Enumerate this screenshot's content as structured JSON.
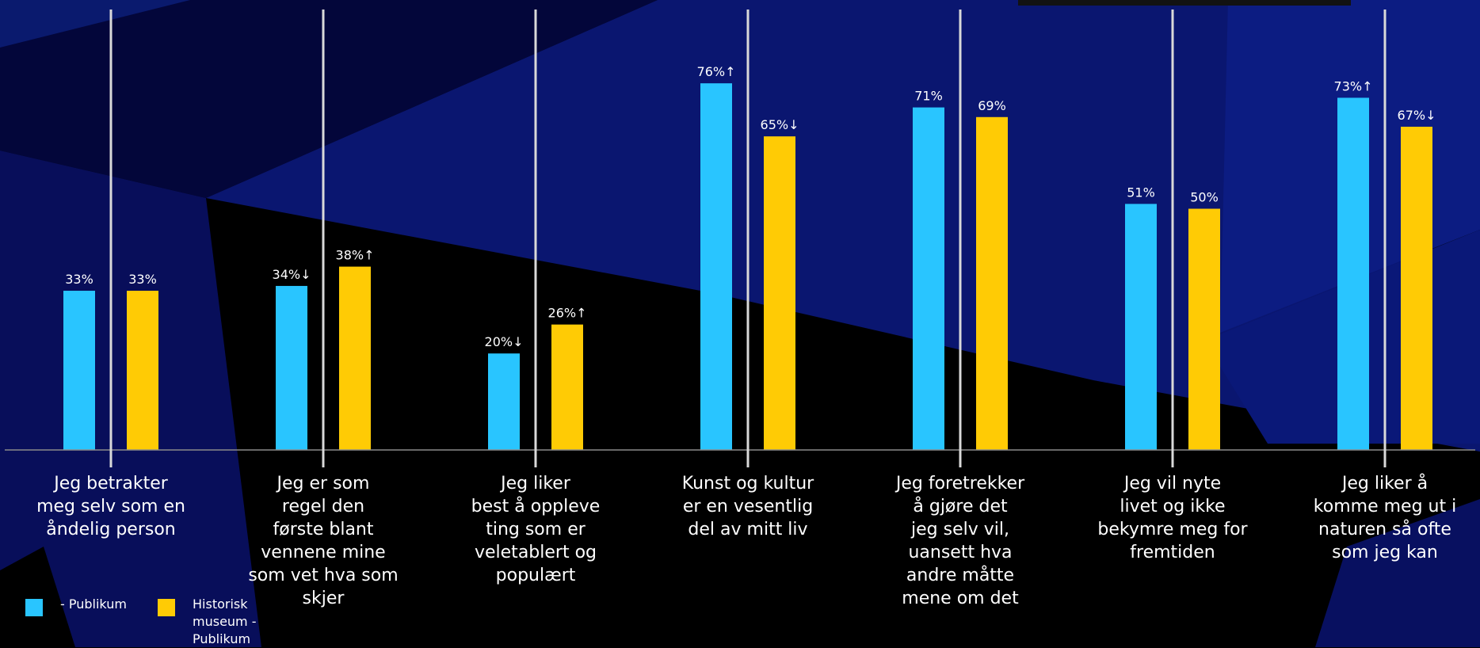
{
  "chart_data": {
    "type": "bar",
    "categories": [
      "Jeg betrakter\nmeg selv som en\nåndelig person",
      "Jeg er som\nregel den\nførste blant\nvennene mine\nsom vet hva som\nskjer",
      "Jeg liker\nbest å oppleve\nting som er\nveletablert og\npopulært",
      "Kunst og kultur\ner en vesentlig\ndel av mitt liv",
      "Jeg foretrekker\nå gjøre det\njeg selv vil,\nuansett hva\nandre måtte\nmene om det",
      "Jeg vil nyte\nlivet og ikke\nbekymre meg for\nfremtiden",
      "Jeg liker å\nkomme meg ut i\nnaturen så ofte\nsom jeg kan"
    ],
    "series": [
      {
        "name": "- Publikum",
        "color": "#29c5ff",
        "values": [
          33,
          34,
          20,
          76,
          71,
          51,
          73
        ],
        "labels": [
          "33%",
          "34%↓",
          "20%↓",
          "76%↑",
          "71%",
          "51%",
          "73%↑"
        ]
      },
      {
        "name": "Historisk\nmuseum -\nPublikum",
        "color": "#ffcb05",
        "values": [
          33,
          38,
          26,
          65,
          69,
          50,
          67
        ],
        "labels": [
          "33%",
          "38%↑",
          "26%↑",
          "65%↓",
          "69%",
          "50%",
          "67%↓"
        ]
      }
    ],
    "ylim": [
      0,
      100
    ],
    "grid": false,
    "legend_position": "bottom-left",
    "background_color": "#000000",
    "text_color": "#ffffff"
  }
}
